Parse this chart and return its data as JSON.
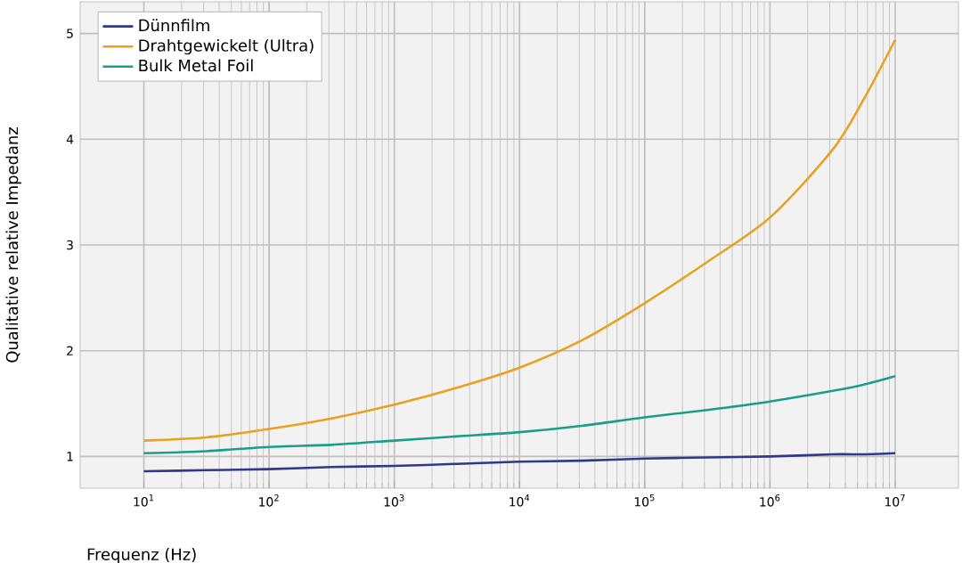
{
  "chart_data": {
    "type": "line",
    "xlabel": "Frequenz (Hz)",
    "ylabel": "Qualitative relative Impedanz",
    "log": "x",
    "grid": true,
    "legend": "top left",
    "line_style": "solid",
    "marker": "none",
    "xlim": [
      3.1,
      32000000
    ],
    "ylim": [
      0.7,
      5.3
    ],
    "xticks": [
      {
        "value": 10,
        "label": "10$^{1}$"
      },
      {
        "value": 100,
        "label": "10$^{2}$"
      },
      {
        "value": 1000,
        "label": "10$^{3}$"
      },
      {
        "value": 10000,
        "label": "10$^{4}$"
      },
      {
        "value": 100000,
        "label": "10$^{5}$"
      },
      {
        "value": 1000000,
        "label": "10$^{6}$"
      },
      {
        "value": 10000000,
        "label": "10$^{7}$"
      }
    ],
    "yticks": [
      1,
      2,
      3,
      4,
      5
    ],
    "x": [
      10,
      31.6,
      100,
      316,
      1000,
      3160,
      10000,
      31600,
      100000,
      316000,
      1000000,
      3160000,
      5620000,
      10000000
    ],
    "series": [
      {
        "name": "Dünnfilm",
        "color": "#2e3a87",
        "values": [
          0.86,
          0.87,
          0.88,
          0.9,
          0.91,
          0.93,
          0.95,
          0.96,
          0.98,
          0.99,
          1.0,
          1.02,
          1.02,
          1.03
        ]
      },
      {
        "name": "Drahtgewickelt (Ultra)",
        "color": "#e8a21f",
        "values": [
          1.15,
          1.18,
          1.26,
          1.36,
          1.49,
          1.65,
          1.84,
          2.1,
          2.45,
          2.84,
          3.26,
          3.9,
          4.38,
          4.94
        ]
      },
      {
        "name": "Bulk Metal Foil",
        "color": "#1a9e8a",
        "values": [
          1.03,
          1.05,
          1.09,
          1.11,
          1.15,
          1.19,
          1.23,
          1.29,
          1.37,
          1.44,
          1.52,
          1.62,
          1.68,
          1.76
        ]
      }
    ]
  }
}
